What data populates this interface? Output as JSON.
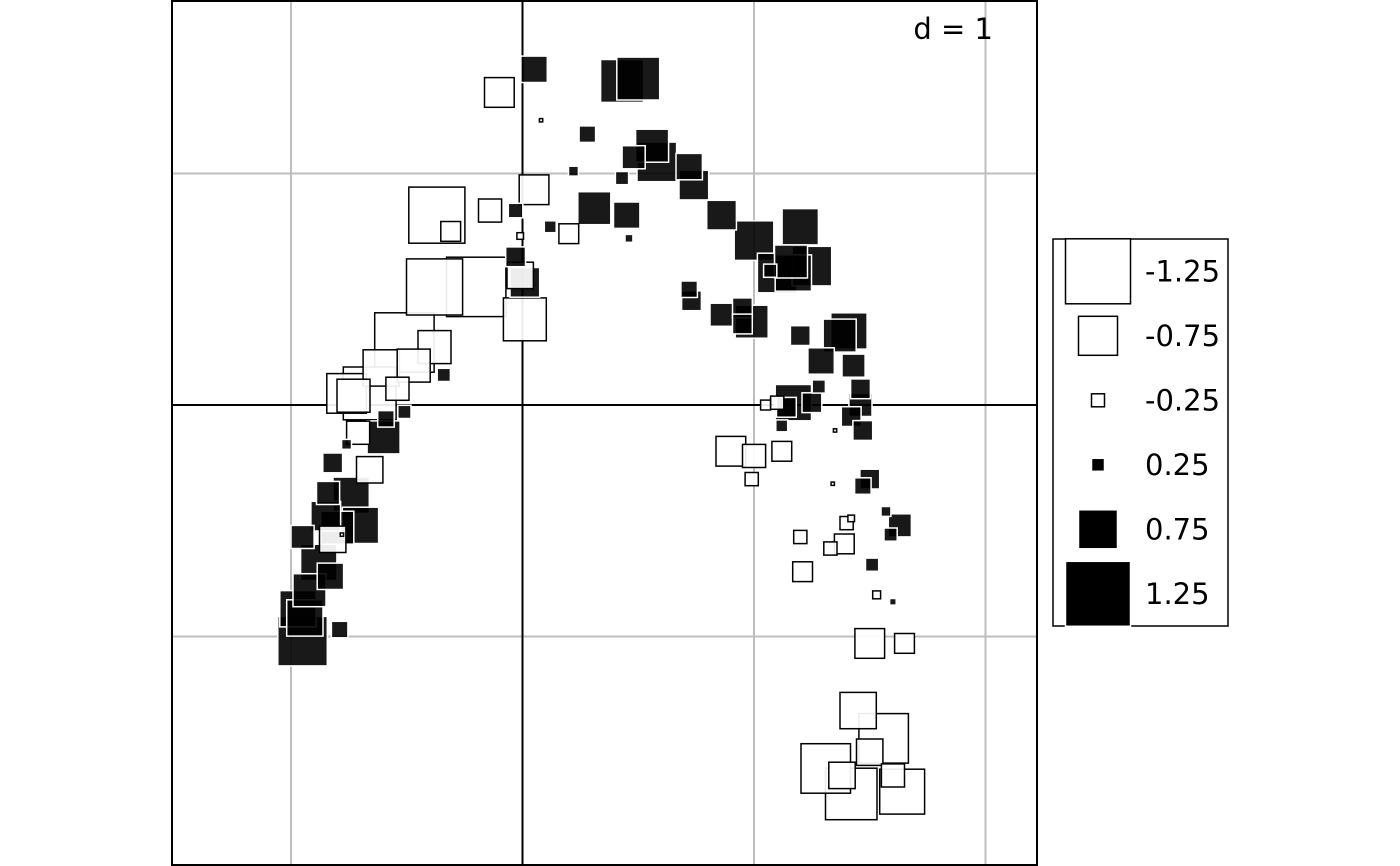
{
  "chart_data": {
    "type": "scatter",
    "title": "",
    "xlabel": "",
    "ylabel": "",
    "scale_label": "d = 1",
    "grid": true,
    "grid_spacing": 1,
    "xlim": [
      -1.52,
      2.24
    ],
    "ylim": [
      -1.99,
      1.75
    ],
    "marker": "square",
    "size_semantics": "square side proportional to |value|; filled black for positive values, white with black border for negative values",
    "legend": {
      "placement": "right",
      "entries": [
        "-1.25",
        "-0.75",
        "-0.25",
        "0.25",
        "0.75",
        "1.25"
      ],
      "values": [
        -1.25,
        -0.75,
        -0.25,
        0.25,
        0.75,
        1.25
      ]
    },
    "colors": {
      "positive": "#000000",
      "negative": "#ffffff",
      "grid": "#bebebe"
    },
    "points": [
      {
        "x": 0.05,
        "y": 1.45,
        "v": 0.4
      },
      {
        "x": -0.1,
        "y": 1.35,
        "v": -0.45
      },
      {
        "x": 0.08,
        "y": 1.23,
        "v": -0.05
      },
      {
        "x": 0.28,
        "y": 1.17,
        "v": 0.25
      },
      {
        "x": 0.43,
        "y": 1.4,
        "v": 0.65
      },
      {
        "x": 0.5,
        "y": 1.41,
        "v": 0.65
      },
      {
        "x": 0.56,
        "y": 1.12,
        "v": 0.5
      },
      {
        "x": 0.58,
        "y": 1.05,
        "v": 0.6
      },
      {
        "x": 0.48,
        "y": 1.07,
        "v": 0.35
      },
      {
        "x": 0.72,
        "y": 1.03,
        "v": 0.4
      },
      {
        "x": 0.74,
        "y": 0.95,
        "v": 0.45
      },
      {
        "x": 0.43,
        "y": 0.98,
        "v": 0.2
      },
      {
        "x": 0.22,
        "y": 1.01,
        "v": 0.15
      },
      {
        "x": 0.31,
        "y": 0.85,
        "v": 0.5
      },
      {
        "x": 0.45,
        "y": 0.82,
        "v": 0.4
      },
      {
        "x": 0.46,
        "y": 0.72,
        "v": 0.12
      },
      {
        "x": 0.86,
        "y": 0.82,
        "v": 0.45
      },
      {
        "x": 0.2,
        "y": 0.74,
        "v": -0.3
      },
      {
        "x": 0.12,
        "y": 0.77,
        "v": 0.18
      },
      {
        "x": 0.05,
        "y": 0.93,
        "v": -0.45
      },
      {
        "x": -0.03,
        "y": 0.84,
        "v": 0.22
      },
      {
        "x": -0.14,
        "y": 0.84,
        "v": -0.35
      },
      {
        "x": -0.01,
        "y": 0.73,
        "v": -0.1
      },
      {
        "x": -0.37,
        "y": 0.82,
        "v": -0.85
      },
      {
        "x": -0.31,
        "y": 0.75,
        "v": -0.3
      },
      {
        "x": -0.03,
        "y": 0.64,
        "v": 0.3
      },
      {
        "x": 0.01,
        "y": 0.53,
        "v": 0.45
      },
      {
        "x": -0.01,
        "y": 0.56,
        "v": -0.4
      },
      {
        "x": -0.2,
        "y": 0.51,
        "v": -0.9
      },
      {
        "x": -0.38,
        "y": 0.51,
        "v": -0.85
      },
      {
        "x": 0.01,
        "y": 0.37,
        "v": -0.65
      },
      {
        "x": -0.51,
        "y": 0.27,
        "v": -0.9
      },
      {
        "x": -0.38,
        "y": 0.25,
        "v": -0.5
      },
      {
        "x": -0.47,
        "y": 0.17,
        "v": -0.5
      },
      {
        "x": -0.61,
        "y": 0.16,
        "v": -0.55
      },
      {
        "x": -0.34,
        "y": 0.13,
        "v": 0.2
      },
      {
        "x": -0.66,
        "y": 0.05,
        "v": -0.8
      },
      {
        "x": -0.54,
        "y": 0.07,
        "v": -0.35
      },
      {
        "x": -0.76,
        "y": 0.05,
        "v": -0.6
      },
      {
        "x": -0.73,
        "y": 0.04,
        "v": -0.5
      },
      {
        "x": -0.51,
        "y": -0.03,
        "v": 0.2
      },
      {
        "x": -0.59,
        "y": -0.06,
        "v": 0.25
      },
      {
        "x": -0.6,
        "y": -0.14,
        "v": 0.5
      },
      {
        "x": -0.71,
        "y": -0.12,
        "v": -0.35
      },
      {
        "x": -0.76,
        "y": -0.17,
        "v": 0.15
      },
      {
        "x": -0.82,
        "y": -0.25,
        "v": 0.3
      },
      {
        "x": -0.66,
        "y": -0.28,
        "v": -0.4
      },
      {
        "x": -0.74,
        "y": -0.39,
        "v": 0.55
      },
      {
        "x": -0.84,
        "y": -0.38,
        "v": 0.35
      },
      {
        "x": -0.85,
        "y": -0.48,
        "v": 0.45
      },
      {
        "x": -0.8,
        "y": -0.53,
        "v": 0.5
      },
      {
        "x": -0.7,
        "y": -0.52,
        "v": 0.55
      },
      {
        "x": -0.82,
        "y": -0.58,
        "v": -0.4
      },
      {
        "x": -0.78,
        "y": -0.56,
        "v": -0.05
      },
      {
        "x": -0.95,
        "y": -0.57,
        "v": 0.35
      },
      {
        "x": -0.88,
        "y": -0.68,
        "v": 0.55
      },
      {
        "x": -0.83,
        "y": -0.74,
        "v": 0.4
      },
      {
        "x": -0.92,
        "y": -0.8,
        "v": 0.5
      },
      {
        "x": -0.97,
        "y": -0.88,
        "v": 0.55
      },
      {
        "x": -0.94,
        "y": -0.92,
        "v": 0.55
      },
      {
        "x": -0.95,
        "y": -1.02,
        "v": 0.75
      },
      {
        "x": -0.79,
        "y": -0.97,
        "v": 0.25
      },
      {
        "x": 0.72,
        "y": 0.5,
        "v": 0.25
      },
      {
        "x": 0.73,
        "y": 0.45,
        "v": 0.3
      },
      {
        "x": 0.86,
        "y": 0.39,
        "v": 0.35
      },
      {
        "x": 0.95,
        "y": 0.42,
        "v": 0.3
      },
      {
        "x": 0.99,
        "y": 0.36,
        "v": 0.5
      },
      {
        "x": 0.95,
        "y": 0.35,
        "v": 0.3
      },
      {
        "x": 1.0,
        "y": 0.71,
        "v": 0.6
      },
      {
        "x": 1.2,
        "y": 0.77,
        "v": 0.55
      },
      {
        "x": 1.16,
        "y": 0.62,
        "v": 0.5
      },
      {
        "x": 1.1,
        "y": 0.57,
        "v": 0.6
      },
      {
        "x": 1.07,
        "y": 0.58,
        "v": 0.2
      },
      {
        "x": 1.25,
        "y": 0.6,
        "v": 0.6
      },
      {
        "x": 1.17,
        "y": 0.57,
        "v": 0.55
      },
      {
        "x": 1.2,
        "y": 0.3,
        "v": 0.3
      },
      {
        "x": 1.41,
        "y": 0.32,
        "v": 0.55
      },
      {
        "x": 1.37,
        "y": 0.3,
        "v": 0.5
      },
      {
        "x": 1.28,
        "y": 0.08,
        "v": 0.2
      },
      {
        "x": 1.29,
        "y": 0.19,
        "v": 0.4
      },
      {
        "x": 1.43,
        "y": 0.17,
        "v": 0.35
      },
      {
        "x": 1.25,
        "y": 0.01,
        "v": 0.3
      },
      {
        "x": 1.46,
        "y": 0.07,
        "v": 0.3
      },
      {
        "x": 1.1,
        "y": 0.01,
        "v": -0.2
      },
      {
        "x": 1.05,
        "y": 0.0,
        "v": -0.15
      },
      {
        "x": 1.17,
        "y": 0.01,
        "v": 0.55
      },
      {
        "x": 1.14,
        "y": -0.01,
        "v": 0.3
      },
      {
        "x": 1.12,
        "y": -0.09,
        "v": 0.18
      },
      {
        "x": 1.46,
        "y": 0.0,
        "v": 0.35
      },
      {
        "x": 1.42,
        "y": -0.05,
        "v": 0.3
      },
      {
        "x": 1.47,
        "y": -0.11,
        "v": 0.3
      },
      {
        "x": 1.35,
        "y": -0.11,
        "v": -0.05
      },
      {
        "x": 0.9,
        "y": -0.2,
        "v": -0.45
      },
      {
        "x": 1.0,
        "y": -0.22,
        "v": -0.35
      },
      {
        "x": 1.12,
        "y": -0.2,
        "v": -0.3
      },
      {
        "x": 0.99,
        "y": -0.32,
        "v": -0.2
      },
      {
        "x": 1.34,
        "y": -0.34,
        "v": -0.05
      },
      {
        "x": 1.5,
        "y": -0.32,
        "v": 0.3
      },
      {
        "x": 1.47,
        "y": -0.35,
        "v": 0.25
      },
      {
        "x": 1.57,
        "y": -0.46,
        "v": 0.15
      },
      {
        "x": 1.63,
        "y": -0.52,
        "v": 0.35
      },
      {
        "x": 1.42,
        "y": -0.49,
        "v": -0.1
      },
      {
        "x": 1.4,
        "y": -0.51,
        "v": -0.2
      },
      {
        "x": 1.59,
        "y": -0.56,
        "v": 0.2
      },
      {
        "x": 1.2,
        "y": -0.57,
        "v": -0.2
      },
      {
        "x": 1.39,
        "y": -0.6,
        "v": -0.3
      },
      {
        "x": 1.33,
        "y": -0.62,
        "v": -0.2
      },
      {
        "x": 1.51,
        "y": -0.69,
        "v": 0.2
      },
      {
        "x": 1.21,
        "y": -0.72,
        "v": -0.3
      },
      {
        "x": 1.53,
        "y": -0.82,
        "v": -0.12
      },
      {
        "x": 1.6,
        "y": -0.85,
        "v": 0.1
      },
      {
        "x": 1.5,
        "y": -1.03,
        "v": -0.45
      },
      {
        "x": 1.65,
        "y": -1.03,
        "v": -0.3
      },
      {
        "x": 1.45,
        "y": -1.32,
        "v": -0.55
      },
      {
        "x": 1.56,
        "y": -1.44,
        "v": -0.75
      },
      {
        "x": 1.5,
        "y": -1.5,
        "v": -0.4
      },
      {
        "x": 1.31,
        "y": -1.57,
        "v": -0.75
      },
      {
        "x": 1.38,
        "y": -1.6,
        "v": -0.4
      },
      {
        "x": 1.6,
        "y": -1.6,
        "v": -0.35
      },
      {
        "x": 1.42,
        "y": -1.68,
        "v": -0.78
      },
      {
        "x": 1.64,
        "y": -1.67,
        "v": -0.68
      }
    ]
  }
}
